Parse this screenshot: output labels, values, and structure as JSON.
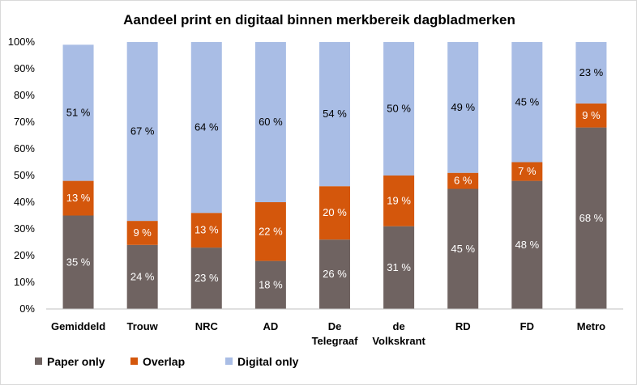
{
  "chart_data": {
    "type": "bar",
    "stacked": true,
    "title": "Aandeel print en digitaal binnen merkbereik dagbladmerken",
    "categories": [
      [
        "Gemiddeld"
      ],
      [
        "Trouw"
      ],
      [
        "NRC"
      ],
      [
        "AD"
      ],
      [
        "De",
        "Telegraaf"
      ],
      [
        "de",
        "Volkskrant"
      ],
      [
        "RD"
      ],
      [
        "FD"
      ],
      [
        "Metro"
      ]
    ],
    "series": [
      {
        "name": "Paper only",
        "color": "#6f6361",
        "values": [
          35,
          24,
          23,
          18,
          26,
          31,
          45,
          48,
          68
        ],
        "labels": [
          "35 %",
          "24 %",
          "23 %",
          "18 %",
          "26 %",
          "31 %",
          "45 %",
          "48 %",
          "68 %"
        ],
        "label_color": "#ffffff"
      },
      {
        "name": "Overlap",
        "color": "#d4570c",
        "values": [
          13,
          9,
          13,
          22,
          20,
          19,
          6,
          7,
          9
        ],
        "labels": [
          "13 %",
          "9 %",
          "13 %",
          "22 %",
          "20 %",
          "19 %",
          "6 %",
          "7 %",
          "9 %"
        ],
        "label_color": "#ffffff"
      },
      {
        "name": "Digital only",
        "color": "#a9bde5",
        "values": [
          51,
          67,
          64,
          60,
          54,
          50,
          49,
          45,
          23
        ],
        "labels": [
          "51 %",
          "67 %",
          "64 %",
          "60 %",
          "54 %",
          "50 %",
          "49 %",
          "45 %",
          "23 %"
        ],
        "label_color": "#000000"
      }
    ],
    "y_ticks": [
      "0%",
      "10%",
      "20%",
      "30%",
      "40%",
      "50%",
      "60%",
      "70%",
      "80%",
      "90%",
      "100%"
    ],
    "ylim": [
      0,
      100
    ],
    "grid": false,
    "legend_position": "bottom-left"
  }
}
